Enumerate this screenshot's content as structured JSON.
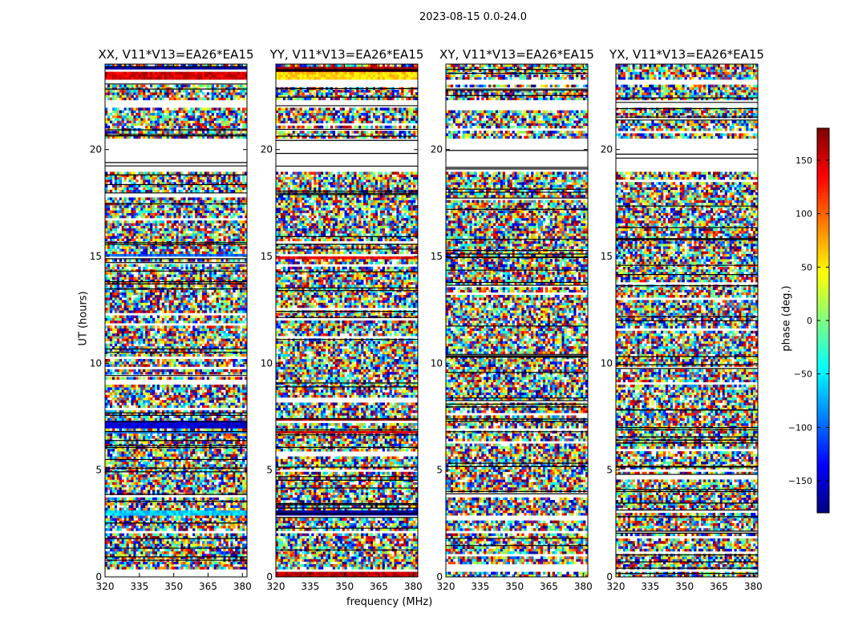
{
  "figure": {
    "suptitle": "2023-08-15 0.0-24.0"
  },
  "chart_data": {
    "type": "heatmap",
    "xlabel": "frequency (MHz)",
    "ylabel": "UT (hours)",
    "colorbar_label": "phase (deg.)",
    "colormap": "jet",
    "color_range": [
      -180,
      180
    ],
    "colorbar_ticks": [
      "150",
      "100",
      "50",
      "0",
      "−50",
      "−100",
      "−150"
    ],
    "colorbar_tick_values": [
      150,
      100,
      50,
      0,
      -50,
      -100,
      -150
    ],
    "xlim": [
      320,
      382
    ],
    "ylim": [
      0,
      24
    ],
    "xticks": [
      320,
      335,
      350,
      365,
      380
    ],
    "yticks": [
      0,
      5,
      10,
      15,
      20
    ],
    "panels": [
      {
        "title": "XX, V11*V13=EA26*EA15",
        "pol": "XX"
      },
      {
        "title": "YY, V11*V13=EA26*EA15",
        "pol": "YY"
      },
      {
        "title": "XY, V11*V13=EA26*EA15",
        "pol": "XY"
      },
      {
        "title": "YX, V11*V13=EA26*EA15",
        "pol": "YX"
      }
    ],
    "blank_time_ranges": [
      [
        23.0,
        23.3
      ],
      [
        22.0,
        22.3
      ],
      [
        19.0,
        20.5
      ],
      [
        0.25,
        0.35
      ],
      [
        2.0,
        2.2
      ]
    ],
    "coherent_bands": {
      "XX": [
        [
          23.6,
          23.9,
          -170
        ],
        [
          23.3,
          23.6,
          150
        ],
        [
          14.9,
          15.1,
          -100
        ],
        [
          7.0,
          7.3,
          -150
        ],
        [
          6.7,
          6.9,
          -90
        ],
        [
          2.9,
          3.1,
          -60
        ],
        [
          0.0,
          0.2,
          170
        ]
      ],
      "YY": [
        [
          23.6,
          23.9,
          170
        ],
        [
          23.3,
          23.6,
          60
        ],
        [
          14.9,
          15.1,
          140
        ],
        [
          7.2,
          7.4,
          170
        ],
        [
          6.7,
          6.9,
          150
        ],
        [
          2.9,
          3.1,
          -170
        ],
        [
          0.0,
          0.2,
          160
        ]
      ],
      "XY": [],
      "YX": []
    }
  }
}
